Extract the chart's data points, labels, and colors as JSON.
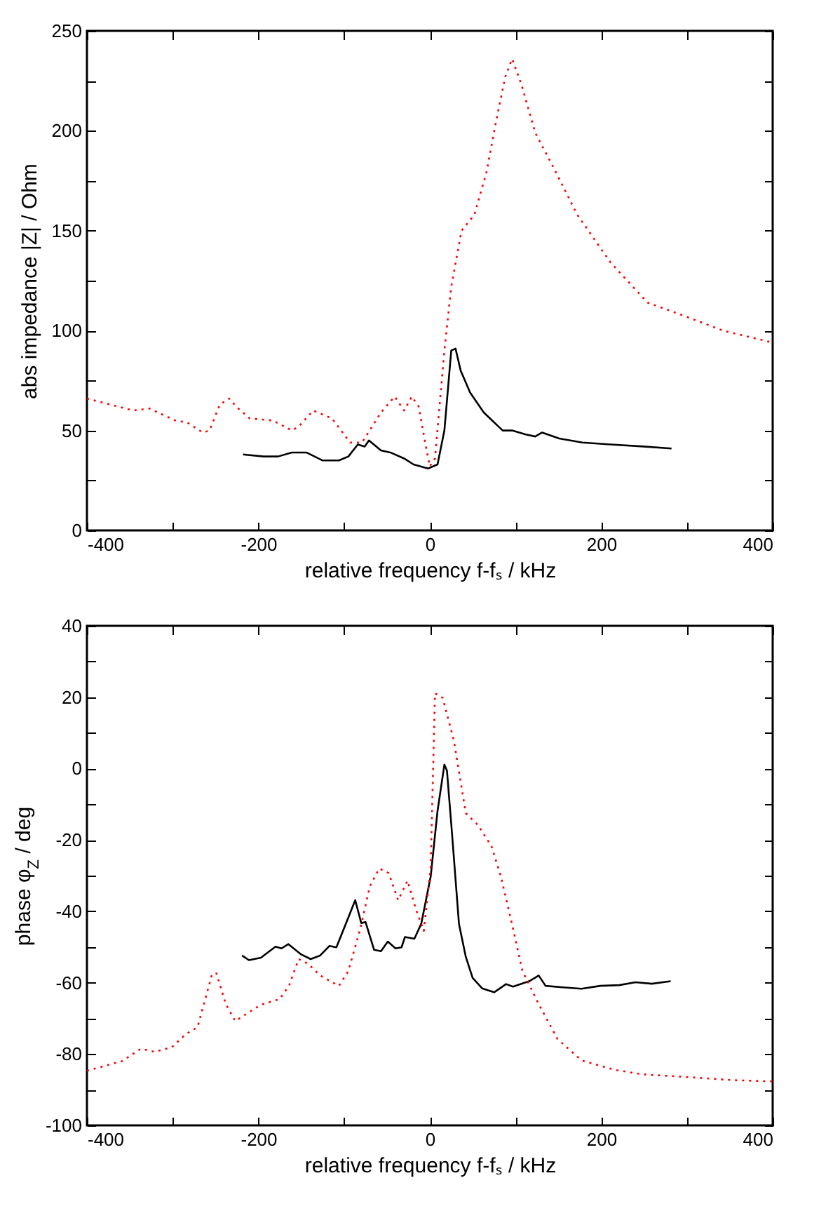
{
  "chart_data": [
    {
      "type": "line",
      "xlabel": "relative frequency f-fₛ / kHz",
      "ylabel": "abs impedance |Z| / Ohm",
      "xlim": [
        -400,
        400
      ],
      "ylim": [
        0,
        250
      ],
      "xticks": [
        -400,
        {
          "value": -300,
          "label": null
        },
        -200,
        {
          "value": -100,
          "label": null
        },
        0,
        {
          "value": 100,
          "label": null
        },
        200,
        {
          "value": 300,
          "label": null
        },
        400
      ],
      "yticks": [
        0,
        {
          "value": 25,
          "label": null
        },
        50,
        {
          "value": 75,
          "label": null
        },
        100,
        {
          "value": 125,
          "label": null
        },
        150,
        {
          "value": 175,
          "label": null
        },
        200,
        {
          "value": 225,
          "label": null
        },
        250
      ],
      "grid": false,
      "marker": "none",
      "series": [
        {
          "color": "#000000",
          "line_style": "solid",
          "x": [
            -218,
            -194,
            -177,
            -161,
            -144,
            -125,
            -106,
            -95,
            -84,
            -76,
            -71,
            -57,
            -46,
            -30,
            -19,
            -2,
            9,
            17,
            25,
            30,
            36,
            47,
            63,
            85,
            96,
            112,
            123,
            131,
            151,
            178,
            211,
            249,
            282
          ],
          "values": [
            38,
            37,
            37,
            39,
            39,
            35,
            35,
            37,
            43,
            42,
            45,
            40,
            39,
            36,
            33,
            31,
            33,
            50,
            90,
            91,
            80,
            69,
            59,
            50,
            50,
            48,
            47,
            49,
            46,
            44,
            43,
            42,
            41
          ]
        },
        {
          "color": "#ff0000",
          "line_style": "dotted",
          "x": [
            -400,
            -346,
            -327,
            -297,
            -283,
            -265,
            -257,
            -245,
            -234,
            -226,
            -210,
            -183,
            -161,
            -153,
            -136,
            -114,
            -93,
            -79,
            -57,
            -41,
            -30,
            -21,
            -13,
            -5,
            0,
            6,
            17,
            25,
            37,
            52,
            66,
            77,
            88,
            96,
            107,
            123,
            145,
            172,
            211,
            254,
            293,
            342,
            400
          ],
          "values": [
            66,
            60,
            61,
            55,
            54,
            49,
            50,
            63,
            66,
            62,
            56,
            55,
            50,
            52,
            60,
            56,
            44,
            44,
            59,
            67,
            60,
            67,
            62,
            43,
            32,
            36,
            90,
            122,
            150,
            158,
            179,
            204,
            227,
            236,
            223,
            199,
            181,
            158,
            134,
            114,
            108,
            100,
            94
          ]
        }
      ]
    },
    {
      "type": "line",
      "xlabel": "relative frequency f-fₛ / kHz",
      "ylabel": "phase φ$_{Z}$ / deg",
      "xlim": [
        -400,
        400
      ],
      "ylim": [
        -100,
        40
      ],
      "xticks": [
        -400,
        {
          "value": -300,
          "label": null
        },
        -200,
        {
          "value": -100,
          "label": null
        },
        0,
        {
          "value": 100,
          "label": null
        },
        200,
        {
          "value": 300,
          "label": null
        },
        400
      ],
      "yticks": [
        -100,
        {
          "value": -90,
          "label": null
        },
        -80,
        {
          "value": -70,
          "label": null
        },
        -60,
        {
          "value": -50,
          "label": null
        },
        -40,
        {
          "value": -30,
          "label": null
        },
        -20,
        {
          "value": -10,
          "label": null
        },
        0,
        {
          "value": 10,
          "label": null
        },
        20,
        {
          "value": 30,
          "label": null
        },
        40
      ],
      "grid": false,
      "marker": "none",
      "series": [
        {
          "color": "#000000",
          "line_style": "solid",
          "x": [
            -219,
            -211,
            -197,
            -180,
            -173,
            -165,
            -150,
            -139,
            -128,
            -117,
            -109,
            -98,
            -87,
            -80,
            -75,
            -65,
            -57,
            -49,
            -40,
            -33,
            -29,
            -18,
            -10,
            1,
            9,
            17,
            20,
            26,
            34,
            42,
            50,
            61,
            75,
            89,
            97,
            116,
            127,
            135,
            155,
            177,
            199,
            221,
            240,
            259,
            281
          ],
          "values": [
            -52.4,
            -53.7,
            -53,
            -49.9,
            -50.4,
            -49.2,
            -52.1,
            -53.4,
            -52.4,
            -49.7,
            -50.1,
            -43.5,
            -36.9,
            -43.3,
            -43,
            -50.8,
            -51.2,
            -48.5,
            -50.4,
            -50.1,
            -47.2,
            -47.7,
            -43.5,
            -30.3,
            -11.9,
            1.1,
            -0.6,
            -18.5,
            -43.5,
            -52.8,
            -58.7,
            -61.6,
            -62.7,
            -60.4,
            -61.1,
            -59.6,
            -58,
            -60.9,
            -61.3,
            -61.7,
            -60.9,
            -60.7,
            -59.9,
            -60.3,
            -59.6
          ]
        },
        {
          "color": "#ff0000",
          "line_style": "dotted",
          "x": [
            -400,
            -359,
            -337,
            -321,
            -301,
            -285,
            -271,
            -254,
            -249,
            -238,
            -227,
            -213,
            -197,
            -175,
            -164,
            -153,
            -142,
            -128,
            -106,
            -95,
            -81,
            -70,
            -59,
            -48,
            -37,
            -26,
            -16,
            -7,
            1,
            6,
            15,
            28,
            42,
            56,
            72,
            83,
            97,
            108,
            127,
            149,
            177,
            215,
            248,
            297,
            352,
            400
          ],
          "values": [
            -84.7,
            -82,
            -78.5,
            -79.4,
            -78.1,
            -74.5,
            -72.5,
            -57.6,
            -57.4,
            -66,
            -70.8,
            -68.6,
            -66.2,
            -64.6,
            -60.7,
            -53.4,
            -54.7,
            -58,
            -60.9,
            -56.7,
            -44.8,
            -33,
            -28,
            -29.3,
            -36.9,
            -31.4,
            -39.6,
            -45.5,
            -27.7,
            21.1,
            19.8,
            7.9,
            -12.5,
            -15.8,
            -21.8,
            -30.3,
            -44.8,
            -56.7,
            -66,
            -75.8,
            -81.8,
            -84.4,
            -85.7,
            -86.4,
            -87.3,
            -87.7
          ]
        }
      ]
    }
  ]
}
